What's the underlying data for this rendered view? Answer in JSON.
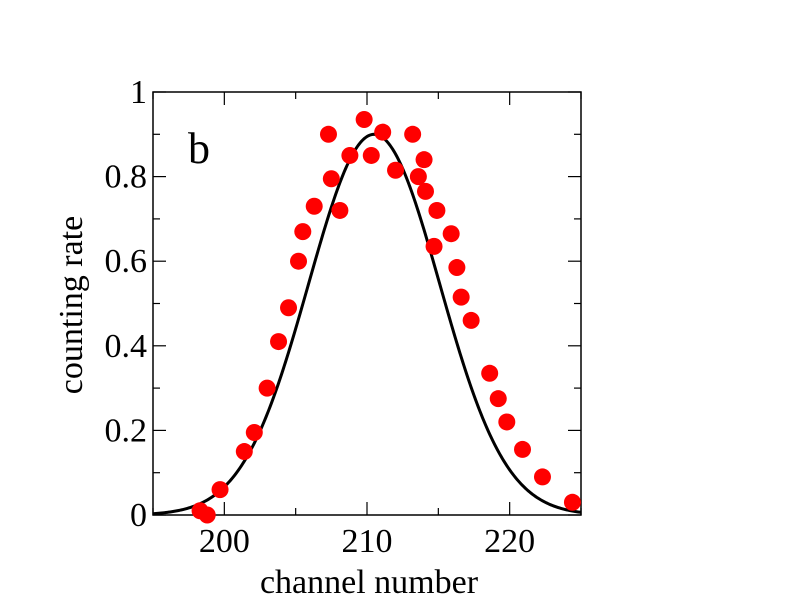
{
  "chart_data": {
    "type": "scatter",
    "panel_label": "b",
    "xlabel": "channel number",
    "ylabel": "counting rate",
    "xlim": [
      195,
      225
    ],
    "ylim": [
      0,
      1
    ],
    "x_ticks": [
      200,
      210,
      220
    ],
    "x_tick_labels": [
      "200",
      "210",
      "220"
    ],
    "y_ticks": [
      0,
      0.2,
      0.4,
      0.6,
      0.8,
      1
    ],
    "y_tick_labels": [
      "0",
      "0.2",
      "0.4",
      "0.6",
      "0.8",
      "1"
    ],
    "grid": false,
    "legend": false,
    "points_color": "#ff0000",
    "fit_color": "#000000",
    "points": [
      {
        "x": 198.3,
        "y": 0.01
      },
      {
        "x": 198.8,
        "y": 0.0
      },
      {
        "x": 199.7,
        "y": 0.06
      },
      {
        "x": 201.4,
        "y": 0.15
      },
      {
        "x": 202.1,
        "y": 0.195
      },
      {
        "x": 203.0,
        "y": 0.3
      },
      {
        "x": 203.8,
        "y": 0.41
      },
      {
        "x": 204.5,
        "y": 0.49
      },
      {
        "x": 205.2,
        "y": 0.6
      },
      {
        "x": 205.5,
        "y": 0.67
      },
      {
        "x": 206.3,
        "y": 0.73
      },
      {
        "x": 207.3,
        "y": 0.9
      },
      {
        "x": 207.5,
        "y": 0.795
      },
      {
        "x": 208.1,
        "y": 0.72
      },
      {
        "x": 208.8,
        "y": 0.85
      },
      {
        "x": 209.8,
        "y": 0.935
      },
      {
        "x": 210.3,
        "y": 0.85
      },
      {
        "x": 211.1,
        "y": 0.905
      },
      {
        "x": 212.0,
        "y": 0.815
      },
      {
        "x": 213.2,
        "y": 0.9
      },
      {
        "x": 213.6,
        "y": 0.8
      },
      {
        "x": 214.0,
        "y": 0.84
      },
      {
        "x": 214.1,
        "y": 0.765
      },
      {
        "x": 214.7,
        "y": 0.635
      },
      {
        "x": 214.9,
        "y": 0.72
      },
      {
        "x": 215.9,
        "y": 0.665
      },
      {
        "x": 216.3,
        "y": 0.585
      },
      {
        "x": 216.6,
        "y": 0.515
      },
      {
        "x": 217.3,
        "y": 0.46
      },
      {
        "x": 218.6,
        "y": 0.335
      },
      {
        "x": 219.2,
        "y": 0.275
      },
      {
        "x": 219.8,
        "y": 0.22
      },
      {
        "x": 220.9,
        "y": 0.155
      },
      {
        "x": 222.3,
        "y": 0.09
      },
      {
        "x": 224.4,
        "y": 0.03
      }
    ],
    "fit": {
      "kind": "gaussian",
      "amplitude": 0.9,
      "center": 210.5,
      "sigma": 4.6
    }
  }
}
